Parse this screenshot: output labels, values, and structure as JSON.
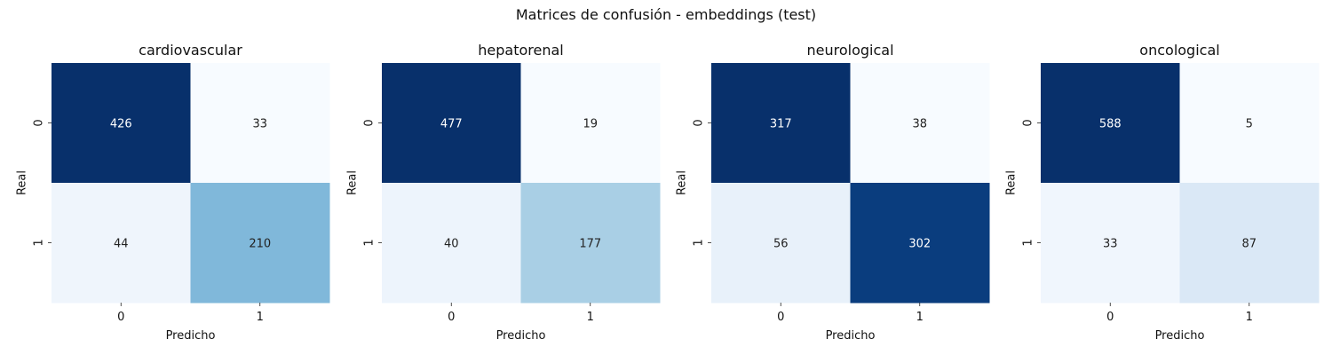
{
  "figure": {
    "title": "Matrices de confusión - embeddings (test)"
  },
  "chart_data": [
    {
      "type": "heatmap",
      "title": "cardiovascular",
      "xlabel": "Predicho",
      "ylabel": "Real",
      "x_ticks": [
        "0",
        "1"
      ],
      "y_ticks": [
        "0",
        "1"
      ],
      "matrix": [
        [
          426,
          33
        ],
        [
          44,
          210
        ]
      ],
      "colors": [
        [
          "#08306b",
          "#f7fbff"
        ],
        [
          "#eff5fc",
          "#80b8da"
        ]
      ],
      "text_colors": [
        [
          "#ffffff",
          "#222222"
        ],
        [
          "#222222",
          "#222222"
        ]
      ]
    },
    {
      "type": "heatmap",
      "title": "hepatorenal",
      "xlabel": "Predicho",
      "ylabel": "Real",
      "x_ticks": [
        "0",
        "1"
      ],
      "y_ticks": [
        "0",
        "1"
      ],
      "matrix": [
        [
          477,
          19
        ],
        [
          40,
          177
        ]
      ],
      "colors": [
        [
          "#08306b",
          "#f7fbff"
        ],
        [
          "#edf4fc",
          "#a9cfe5"
        ]
      ],
      "text_colors": [
        [
          "#ffffff",
          "#222222"
        ],
        [
          "#222222",
          "#222222"
        ]
      ]
    },
    {
      "type": "heatmap",
      "title": "neurological",
      "xlabel": "Predicho",
      "ylabel": "Real",
      "x_ticks": [
        "0",
        "1"
      ],
      "y_ticks": [
        "0",
        "1"
      ],
      "matrix": [
        [
          317,
          38
        ],
        [
          56,
          302
        ]
      ],
      "colors": [
        [
          "#08306b",
          "#f7fbff"
        ],
        [
          "#e8f1fa",
          "#0a3d7e"
        ]
      ],
      "text_colors": [
        [
          "#ffffff",
          "#222222"
        ],
        [
          "#222222",
          "#ffffff"
        ]
      ]
    },
    {
      "type": "heatmap",
      "title": "oncological",
      "xlabel": "Predicho",
      "ylabel": "Real",
      "x_ticks": [
        "0",
        "1"
      ],
      "y_ticks": [
        "0",
        "1"
      ],
      "matrix": [
        [
          588,
          5
        ],
        [
          33,
          87
        ]
      ],
      "colors": [
        [
          "#08306b",
          "#f7fbff"
        ],
        [
          "#f0f6fd",
          "#dae8f6"
        ]
      ],
      "text_colors": [
        [
          "#ffffff",
          "#222222"
        ],
        [
          "#222222",
          "#222222"
        ]
      ]
    }
  ]
}
